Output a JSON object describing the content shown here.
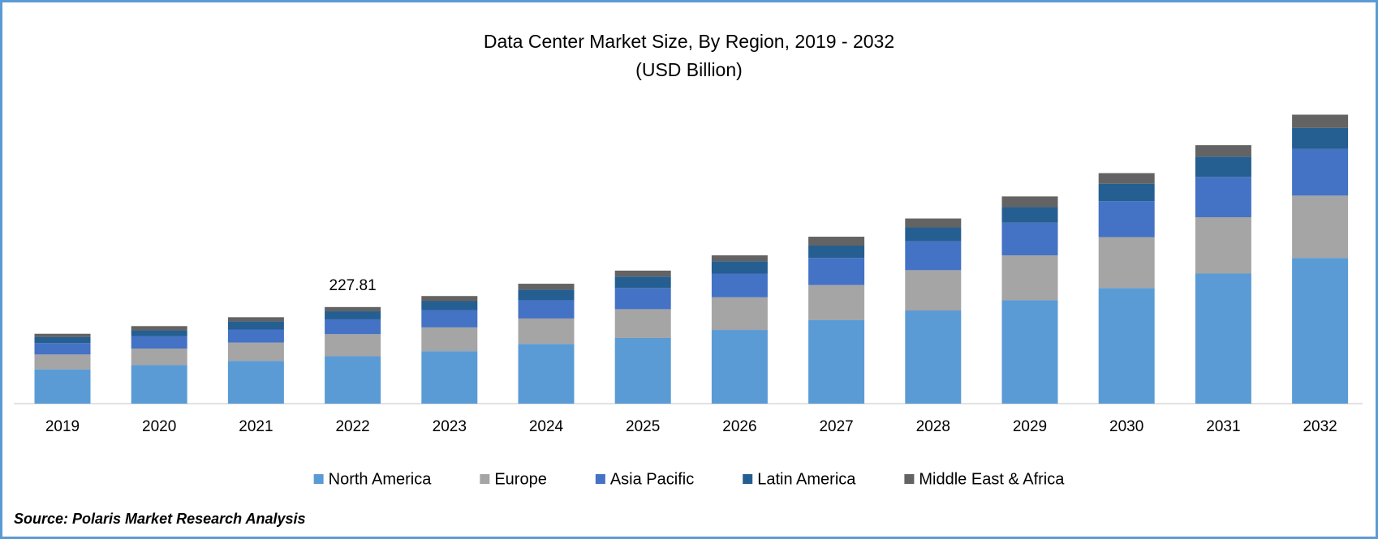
{
  "chart_data": {
    "type": "stacked_bar",
    "title": "Data Center Market Size, By Region, 2019 - 2032",
    "subtitle": "(USD Billion)",
    "source": "Source: Polaris Market Research Analysis",
    "categories": [
      "2019",
      "2020",
      "2021",
      "2022",
      "2023",
      "2024",
      "2025",
      "2026",
      "2027",
      "2028",
      "2029",
      "2030",
      "2031",
      "2032"
    ],
    "series": [
      {
        "name": "North America",
        "color": "#5b9bd5",
        "values": [
          81,
          91,
          101,
          112,
          124,
          141,
          155,
          174,
          197,
          220,
          244,
          273,
          307,
          344
        ]
      },
      {
        "name": "Europe",
        "color": "#a5a5a5",
        "values": [
          35,
          39,
          43,
          52,
          56,
          60,
          68,
          77,
          83,
          95,
          106,
          120,
          133,
          147
        ]
      },
      {
        "name": "Asia Pacific",
        "color": "#4472c4",
        "values": [
          27,
          29,
          31,
          35,
          41,
          43,
          50,
          56,
          64,
          68,
          77,
          85,
          95,
          110
        ]
      },
      {
        "name": "Latin America",
        "color": "#255e91",
        "values": [
          14,
          14,
          19,
          19,
          21,
          25,
          27,
          29,
          29,
          33,
          37,
          41,
          48,
          50
        ]
      },
      {
        "name": "Middle East & Africa",
        "color": "#636363",
        "values": [
          8,
          10,
          10,
          10,
          12,
          14,
          14,
          14,
          21,
          21,
          25,
          25,
          27,
          31
        ]
      }
    ],
    "annotations": [
      {
        "text": "227.81",
        "category": "2022"
      }
    ],
    "ylim": [
      0,
      725
    ],
    "legend": "bottom"
  }
}
